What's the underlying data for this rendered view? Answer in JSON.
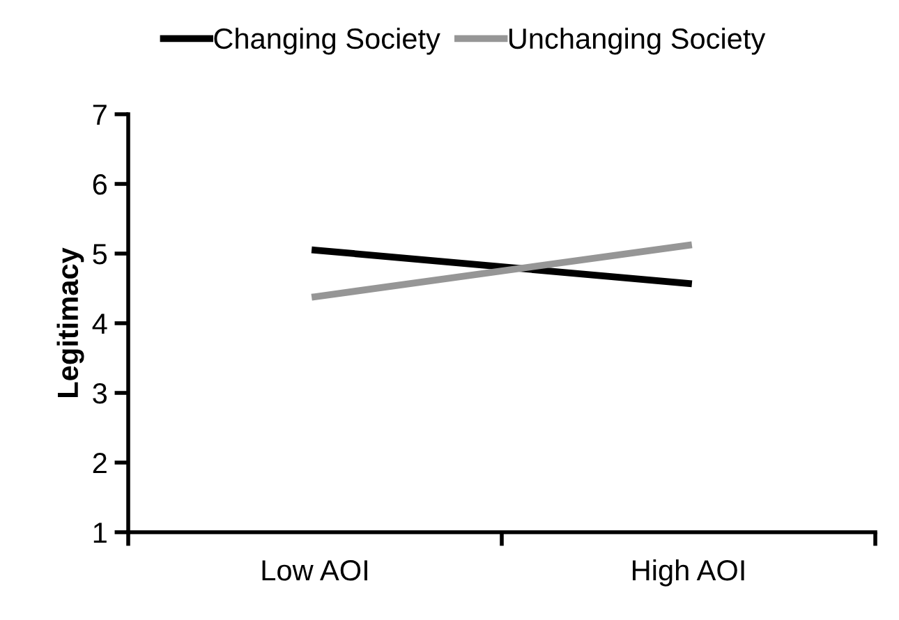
{
  "chart_data": {
    "type": "line",
    "ylabel": "Legitimacy",
    "categories": [
      "Low AOI",
      "High AOI"
    ],
    "series": [
      {
        "name": "Changing Society",
        "color": "#000000",
        "values": [
          5.05,
          4.57
        ]
      },
      {
        "name": "Unchanging Society",
        "color": "#969696",
        "values": [
          4.38,
          5.12
        ]
      }
    ],
    "ylim": [
      1,
      7
    ],
    "yticks": [
      1,
      2,
      3,
      4,
      5,
      6,
      7
    ],
    "grid": false,
    "legend": "top",
    "marker": "none",
    "line_style": "solid"
  }
}
